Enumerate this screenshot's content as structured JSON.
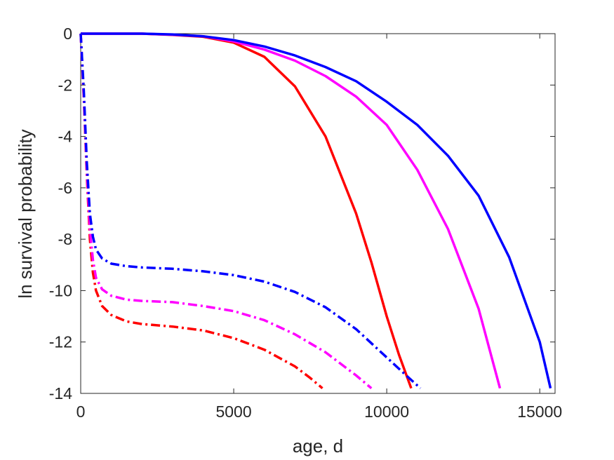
{
  "chart_data": {
    "type": "line",
    "title": "",
    "xlabel": "age, d",
    "ylabel": "ln survival probability",
    "xlim": [
      0,
      15500
    ],
    "ylim": [
      -14,
      0
    ],
    "xticks": [
      0,
      5000,
      10000,
      15000
    ],
    "xtick_labels": [
      "0",
      "5000",
      "10000",
      "15000"
    ],
    "yticks": [
      0,
      -2,
      -4,
      -6,
      -8,
      -10,
      -12,
      -14
    ],
    "ytick_labels": [
      "0",
      "-2",
      "-4",
      "-6",
      "-8",
      "-10",
      "-12",
      "-14"
    ],
    "grid": false,
    "legend": "none",
    "series": [
      {
        "color": "#ff0000",
        "style": "solid",
        "x": [
          0,
          1000,
          2000,
          3000,
          4000,
          5000,
          6000,
          7000,
          8000,
          9000,
          9500,
          10000,
          10400,
          10800
        ],
        "y": [
          0,
          0,
          0,
          -0.05,
          -0.12,
          -0.35,
          -0.9,
          -2.05,
          -4.0,
          -7.0,
          -8.9,
          -11.0,
          -12.5,
          -13.8
        ]
      },
      {
        "color": "#ff00ff",
        "style": "solid",
        "x": [
          0,
          1000,
          2000,
          3000,
          4000,
          5000,
          6000,
          7000,
          8000,
          9000,
          10000,
          11000,
          12000,
          13000,
          13700
        ],
        "y": [
          0,
          0,
          0,
          -0.04,
          -0.1,
          -0.3,
          -0.62,
          -1.05,
          -1.65,
          -2.45,
          -3.55,
          -5.3,
          -7.6,
          -10.7,
          -13.8
        ]
      },
      {
        "color": "#0000ff",
        "style": "solid",
        "x": [
          0,
          1000,
          2000,
          3000,
          4000,
          5000,
          6000,
          7000,
          8000,
          9000,
          10000,
          11000,
          12000,
          13000,
          14000,
          15000,
          15350
        ],
        "y": [
          0,
          0,
          0,
          -0.03,
          -0.1,
          -0.25,
          -0.5,
          -0.85,
          -1.3,
          -1.85,
          -2.65,
          -3.55,
          -4.75,
          -6.3,
          -8.7,
          -12.0,
          -13.8
        ]
      },
      {
        "color": "#ff0000",
        "style": "dashdot",
        "x": [
          0,
          100,
          200,
          300,
          400,
          500,
          700,
          1000,
          1500,
          2000,
          3000,
          4000,
          5000,
          6000,
          7000,
          7500,
          7900
        ],
        "y": [
          0,
          -2.5,
          -5.5,
          -8.0,
          -9.3,
          -10.0,
          -10.6,
          -10.95,
          -11.2,
          -11.3,
          -11.4,
          -11.55,
          -11.85,
          -12.3,
          -12.95,
          -13.4,
          -13.8
        ]
      },
      {
        "color": "#ff00ff",
        "style": "dashdot",
        "x": [
          0,
          100,
          200,
          300,
          400,
          500,
          700,
          1000,
          1500,
          2000,
          3000,
          4000,
          5000,
          6000,
          7000,
          8000,
          9000,
          9500
        ],
        "y": [
          0,
          -2.4,
          -5.3,
          -7.6,
          -8.8,
          -9.5,
          -9.95,
          -10.2,
          -10.35,
          -10.4,
          -10.45,
          -10.6,
          -10.8,
          -11.15,
          -11.7,
          -12.4,
          -13.3,
          -13.8
        ]
      },
      {
        "color": "#0000ff",
        "style": "dashdot",
        "x": [
          0,
          100,
          200,
          300,
          400,
          500,
          700,
          1000,
          1500,
          2000,
          3000,
          4000,
          5000,
          6000,
          7000,
          8000,
          9000,
          10000,
          10500,
          11100
        ],
        "y": [
          0,
          -2.2,
          -5.0,
          -7.0,
          -7.9,
          -8.4,
          -8.75,
          -8.95,
          -9.05,
          -9.1,
          -9.15,
          -9.25,
          -9.4,
          -9.65,
          -10.05,
          -10.65,
          -11.5,
          -12.6,
          -13.15,
          -13.8
        ]
      }
    ]
  }
}
